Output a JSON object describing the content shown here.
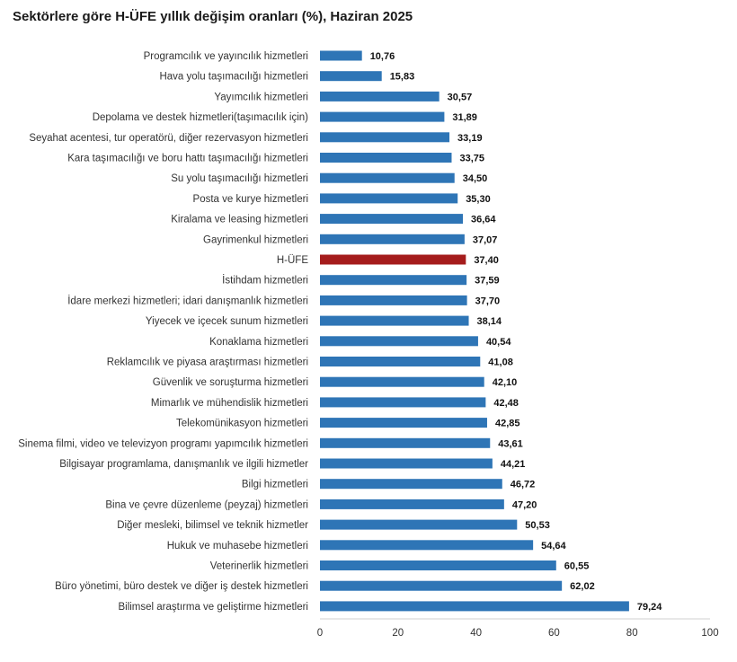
{
  "chart_data": {
    "type": "bar",
    "orientation": "horizontal",
    "title": "Sektörlere göre H-ÜFE yıllık değişim oranları (%), Haziran 2025",
    "xlabel": "",
    "ylabel": "",
    "xlim": [
      0,
      100
    ],
    "xticks": [
      0,
      20,
      40,
      60,
      80,
      100
    ],
    "xtick_labels": [
      "0",
      "20",
      "40",
      "60",
      "80",
      "100"
    ],
    "grid": false,
    "bar_color": "#2E75B6",
    "highlight_color": "#A51C1C",
    "highlight_category": "H-ÜFE",
    "categories": [
      "Programcılık ve yayıncılık hizmetleri",
      "Hava yolu taşımacılığı hizmetleri",
      "Yayımcılık hizmetleri",
      "Depolama ve destek hizmetleri(taşımacılık için)",
      "Seyahat acentesi, tur operatörü, diğer rezervasyon hizmetleri",
      "Kara taşımacılığı ve boru hattı taşımacılığı hizmetleri",
      "Su yolu taşımacılığı hizmetleri",
      "Posta ve kurye hizmetleri",
      "Kiralama ve leasing hizmetleri",
      "Gayrimenkul hizmetleri",
      "H-ÜFE",
      "İstihdam hizmetleri",
      "İdare merkezi hizmetleri; idari danışmanlık hizmetleri",
      "Yiyecek ve içecek sunum hizmetleri",
      "Konaklama hizmetleri",
      "Reklamcılık ve piyasa araştırması hizmetleri",
      "Güvenlik ve soruşturma hizmetleri",
      "Mimarlık ve mühendislik hizmetleri",
      "Telekomünikasyon hizmetleri",
      "Sinema filmi, video ve televizyon programı yapımcılık hizmetleri",
      "Bilgisayar programlama, danışmanlık ve ilgili hizmetler",
      "Bilgi hizmetleri",
      "Bina ve çevre düzenleme (peyzaj) hizmetleri",
      "Diğer mesleki, bilimsel ve teknik hizmetler",
      "Hukuk ve muhasebe hizmetleri",
      "Veterinerlik hizmetleri",
      "Büro yönetimi, büro destek ve diğer iş destek hizmetleri",
      "Bilimsel araştırma ve geliştirme hizmetleri"
    ],
    "values": [
      10.76,
      15.83,
      30.57,
      31.89,
      33.19,
      33.75,
      34.5,
      35.3,
      36.64,
      37.07,
      37.4,
      37.59,
      37.7,
      38.14,
      40.54,
      41.08,
      42.1,
      42.48,
      42.85,
      43.61,
      44.21,
      46.72,
      47.2,
      50.53,
      54.64,
      60.55,
      62.02,
      79.24
    ],
    "value_labels": [
      "10,76",
      "15,83",
      "30,57",
      "31,89",
      "33,19",
      "33,75",
      "34,50",
      "35,30",
      "36,64",
      "37,07",
      "37,40",
      "37,59",
      "37,70",
      "38,14",
      "40,54",
      "41,08",
      "42,10",
      "42,48",
      "42,85",
      "43,61",
      "44,21",
      "46,72",
      "47,20",
      "50,53",
      "54,64",
      "60,55",
      "62,02",
      "79,24"
    ]
  }
}
